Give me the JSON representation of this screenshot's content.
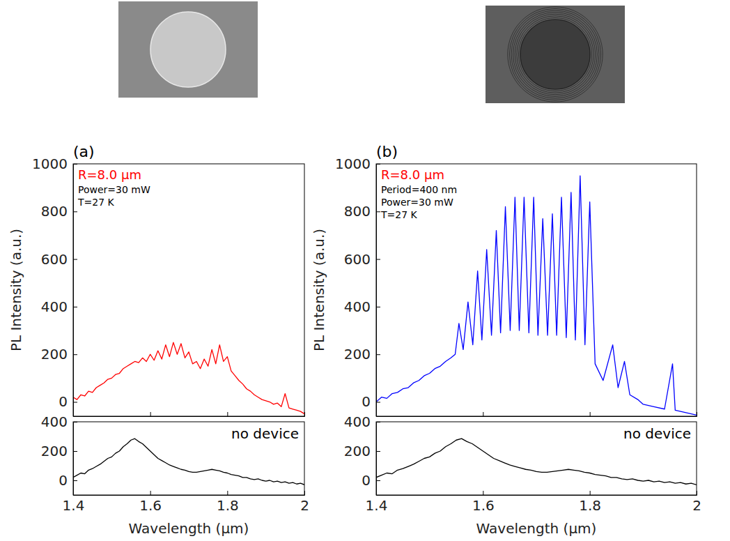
{
  "chart_data": [
    {
      "type": "line",
      "panel_label": "(a)",
      "y_label": "PL Intensity (a.u.)",
      "annotations": [
        {
          "text": "R=8.0 μm",
          "color": "#ff0000"
        },
        {
          "text": "Power=30 mW"
        },
        {
          "text": "T=27 K"
        }
      ],
      "x": [
        1.4,
        1.41,
        1.42,
        1.43,
        1.44,
        1.45,
        1.46,
        1.47,
        1.48,
        1.49,
        1.5,
        1.51,
        1.52,
        1.53,
        1.54,
        1.55,
        1.56,
        1.57,
        1.58,
        1.59,
        1.6,
        1.61,
        1.62,
        1.63,
        1.64,
        1.65,
        1.66,
        1.67,
        1.68,
        1.69,
        1.7,
        1.71,
        1.72,
        1.73,
        1.74,
        1.75,
        1.76,
        1.77,
        1.78,
        1.79,
        1.8,
        1.81,
        1.82,
        1.83,
        1.84,
        1.85,
        1.86,
        1.87,
        1.88,
        1.89,
        1.9,
        1.91,
        1.92,
        1.93,
        1.94,
        1.95,
        1.96,
        1.97,
        1.98,
        1.99,
        2.0
      ],
      "values": [
        20,
        10,
        30,
        25,
        45,
        40,
        60,
        70,
        80,
        95,
        100,
        115,
        120,
        140,
        150,
        160,
        170,
        165,
        185,
        170,
        200,
        175,
        215,
        180,
        240,
        190,
        250,
        200,
        245,
        185,
        210,
        160,
        170,
        140,
        180,
        150,
        220,
        160,
        240,
        170,
        190,
        130,
        110,
        90,
        75,
        55,
        45,
        30,
        20,
        10,
        5,
        0,
        -10,
        -5,
        -20,
        35,
        -25,
        -30,
        -35,
        -40,
        -50
      ],
      "color": "#ff0000",
      "xlim": [
        1.4,
        2.0
      ],
      "xticks": [
        1.4,
        1.6,
        1.8,
        2
      ],
      "ylim": [
        -60,
        1000
      ],
      "yticks": [
        0,
        200,
        400,
        600,
        800,
        1000
      ],
      "tick_labels": "y"
    },
    {
      "type": "line",
      "x_label": "Wavelength (μm)",
      "annotations": [
        {
          "text": "no device"
        }
      ],
      "x": [
        1.4,
        1.41,
        1.42,
        1.43,
        1.44,
        1.45,
        1.46,
        1.47,
        1.48,
        1.49,
        1.5,
        1.51,
        1.52,
        1.53,
        1.54,
        1.55,
        1.56,
        1.57,
        1.58,
        1.59,
        1.6,
        1.61,
        1.62,
        1.63,
        1.64,
        1.65,
        1.66,
        1.67,
        1.68,
        1.69,
        1.7,
        1.71,
        1.72,
        1.73,
        1.74,
        1.75,
        1.76,
        1.77,
        1.78,
        1.79,
        1.8,
        1.81,
        1.82,
        1.83,
        1.84,
        1.85,
        1.86,
        1.87,
        1.88,
        1.89,
        1.9,
        1.91,
        1.92,
        1.93,
        1.94,
        1.95,
        1.96,
        1.97,
        1.98,
        1.99,
        2.0
      ],
      "values": [
        20,
        35,
        50,
        45,
        70,
        80,
        95,
        110,
        130,
        150,
        160,
        185,
        200,
        230,
        250,
        275,
        285,
        265,
        250,
        225,
        200,
        175,
        150,
        135,
        120,
        105,
        95,
        85,
        75,
        70,
        60,
        55,
        55,
        60,
        65,
        70,
        75,
        70,
        65,
        55,
        50,
        40,
        35,
        30,
        20,
        20,
        10,
        5,
        10,
        0,
        -5,
        0,
        -10,
        -5,
        -15,
        -10,
        -20,
        -15,
        -25,
        -20,
        -30
      ],
      "color": "#000000",
      "xlim": [
        1.4,
        2.0
      ],
      "xticks": [
        1.4,
        1.6,
        1.8,
        2
      ],
      "ylim": [
        -100,
        400
      ],
      "yticks": [
        0,
        200,
        400
      ]
    },
    {
      "type": "line",
      "panel_label": "(b)",
      "y_label": "PL Intensity (a.u.)",
      "annotations": [
        {
          "text": "R=8.0 μm",
          "color": "#ff0000"
        },
        {
          "text": "Period=400 nm"
        },
        {
          "text": "Power=30 mW"
        },
        {
          "text": "T=27 K"
        }
      ],
      "x": [
        1.4,
        1.41,
        1.42,
        1.43,
        1.44,
        1.45,
        1.46,
        1.47,
        1.48,
        1.49,
        1.5,
        1.51,
        1.52,
        1.53,
        1.54,
        1.548,
        1.555,
        1.563,
        1.572,
        1.581,
        1.59,
        1.598,
        1.607,
        1.616,
        1.625,
        1.633,
        1.642,
        1.651,
        1.66,
        1.668,
        1.677,
        1.686,
        1.695,
        1.703,
        1.712,
        1.721,
        1.73,
        1.738,
        1.747,
        1.756,
        1.765,
        1.773,
        1.782,
        1.791,
        1.8,
        1.81,
        1.825,
        1.843,
        1.853,
        1.865,
        1.875,
        1.89,
        1.9,
        1.92,
        1.94,
        1.955,
        1.96,
        1.97,
        1.98,
        1.99,
        2.0
      ],
      "values": [
        0,
        20,
        15,
        35,
        40,
        55,
        60,
        80,
        90,
        110,
        120,
        140,
        150,
        170,
        185,
        200,
        330,
        220,
        420,
        240,
        550,
        260,
        640,
        280,
        720,
        290,
        820,
        300,
        860,
        300,
        860,
        290,
        860,
        280,
        770,
        280,
        790,
        280,
        860,
        270,
        880,
        260,
        950,
        240,
        840,
        160,
        90,
        240,
        60,
        170,
        30,
        10,
        -10,
        -20,
        -30,
        160,
        -35,
        -40,
        -45,
        -50,
        -55
      ],
      "color": "#0000ff",
      "xlim": [
        1.4,
        2.0
      ],
      "xticks": [
        1.4,
        1.6,
        1.8,
        2
      ],
      "ylim": [
        -60,
        1000
      ],
      "yticks": [
        0,
        200,
        400,
        600,
        800,
        1000
      ],
      "tick_labels": "y"
    },
    {
      "type": "line",
      "x_label": "Wavelength (μm)",
      "annotations": [
        {
          "text": "no device"
        }
      ],
      "x": [
        1.4,
        1.41,
        1.42,
        1.43,
        1.44,
        1.45,
        1.46,
        1.47,
        1.48,
        1.49,
        1.5,
        1.51,
        1.52,
        1.53,
        1.54,
        1.55,
        1.56,
        1.57,
        1.58,
        1.59,
        1.6,
        1.61,
        1.62,
        1.63,
        1.64,
        1.65,
        1.66,
        1.67,
        1.68,
        1.69,
        1.7,
        1.71,
        1.72,
        1.73,
        1.74,
        1.75,
        1.76,
        1.77,
        1.78,
        1.79,
        1.8,
        1.81,
        1.82,
        1.83,
        1.84,
        1.85,
        1.86,
        1.87,
        1.88,
        1.89,
        1.9,
        1.91,
        1.92,
        1.93,
        1.94,
        1.95,
        1.96,
        1.97,
        1.98,
        1.99,
        2.0
      ],
      "values": [
        20,
        35,
        50,
        45,
        70,
        80,
        95,
        110,
        130,
        150,
        160,
        185,
        200,
        230,
        250,
        275,
        285,
        265,
        250,
        225,
        200,
        175,
        150,
        135,
        120,
        105,
        95,
        85,
        75,
        70,
        60,
        55,
        55,
        60,
        65,
        70,
        75,
        70,
        65,
        55,
        50,
        40,
        35,
        30,
        20,
        20,
        10,
        5,
        10,
        0,
        -5,
        0,
        -10,
        -5,
        -15,
        -10,
        -20,
        -15,
        -25,
        -20,
        -30
      ],
      "color": "#000000",
      "xlim": [
        1.4,
        2.0
      ],
      "xticks": [
        1.4,
        1.6,
        1.8,
        2
      ],
      "ylim": [
        -100,
        400
      ],
      "yticks": [
        0,
        200,
        400
      ]
    }
  ]
}
